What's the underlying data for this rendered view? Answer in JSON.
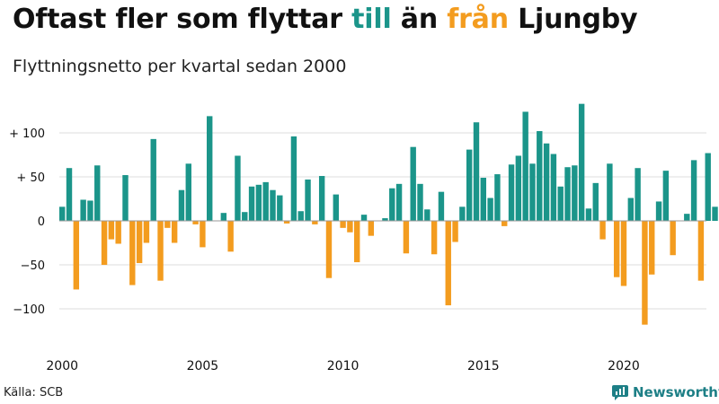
{
  "title": {
    "parts": [
      {
        "text": "Oftast fler som flyttar ",
        "style": "plain"
      },
      {
        "text": "till",
        "style": "positive"
      },
      {
        "text": " än ",
        "style": "plain"
      },
      {
        "text": "från",
        "style": "negative"
      },
      {
        "text": " Ljungby",
        "style": "plain"
      }
    ]
  },
  "subtitle": "Flyttningsnetto per kvartal sedan 2000",
  "source": "Källa: SCB",
  "brand": {
    "name": "Newsworthy",
    "icon": "newsworthy-logo-icon"
  },
  "colors": {
    "positive": "#1b958a",
    "negative": "#f39c1f",
    "grid": "#dddddd",
    "zero": "#9a9a9a",
    "text": "#111111"
  },
  "chart_data": {
    "type": "bar",
    "xlabel": "",
    "ylabel": "",
    "ylim": [
      -135,
      140
    ],
    "grid": true,
    "y_ticks": [
      {
        "value": 100,
        "label": "+ 100"
      },
      {
        "value": 50,
        "label": "+  50"
      },
      {
        "value": 0,
        "label": "0"
      },
      {
        "value": -50,
        "label": "−50"
      },
      {
        "value": -100,
        "label": "−100"
      }
    ],
    "x_ticks": [
      "2000",
      "2005",
      "2010",
      "2015",
      "2020"
    ],
    "quarters": [
      "2000 Q1",
      "2000 Q2",
      "2000 Q3",
      "2000 Q4",
      "2001 Q1",
      "2001 Q2",
      "2001 Q3",
      "2001 Q4",
      "2002 Q1",
      "2002 Q2",
      "2002 Q3",
      "2002 Q4",
      "2003 Q1",
      "2003 Q2",
      "2003 Q3",
      "2003 Q4",
      "2004 Q1",
      "2004 Q2",
      "2004 Q3",
      "2004 Q4",
      "2005 Q1",
      "2005 Q2",
      "2005 Q3",
      "2005 Q4",
      "2006 Q1",
      "2006 Q2",
      "2006 Q3",
      "2006 Q4",
      "2007 Q1",
      "2007 Q2",
      "2007 Q3",
      "2007 Q4",
      "2008 Q1",
      "2008 Q2",
      "2008 Q3",
      "2008 Q4",
      "2009 Q1",
      "2009 Q2",
      "2009 Q3",
      "2009 Q4",
      "2010 Q1",
      "2010 Q2",
      "2010 Q3",
      "2010 Q4",
      "2011 Q1",
      "2011 Q2",
      "2011 Q3",
      "2011 Q4",
      "2012 Q1",
      "2012 Q2",
      "2012 Q3",
      "2012 Q4",
      "2013 Q1",
      "2013 Q2",
      "2013 Q3",
      "2013 Q4",
      "2014 Q1",
      "2014 Q2",
      "2014 Q3",
      "2014 Q4",
      "2015 Q1",
      "2015 Q2",
      "2015 Q3",
      "2015 Q4",
      "2016 Q1",
      "2016 Q2",
      "2016 Q3",
      "2016 Q4",
      "2017 Q1",
      "2017 Q2",
      "2017 Q3",
      "2017 Q4",
      "2018 Q1",
      "2018 Q2",
      "2018 Q3",
      "2018 Q4",
      "2019 Q1",
      "2019 Q2",
      "2019 Q3",
      "2019 Q4",
      "2020 Q1",
      "2020 Q2",
      "2020 Q3",
      "2020 Q4",
      "2021 Q1",
      "2021 Q2",
      "2021 Q3",
      "2021 Q4",
      "2022 Q1",
      "2022 Q2",
      "2022 Q3",
      "2022 Q4",
      "2023 Q1",
      "2023 Q2",
      "2023 Q3",
      "2023 Q4"
    ],
    "values": [
      16,
      60,
      -78,
      24,
      23,
      63,
      -50,
      -21,
      -26,
      52,
      -73,
      -48,
      -25,
      93,
      -68,
      -8,
      -25,
      35,
      65,
      -4,
      -30,
      119,
      0,
      9,
      -35,
      74,
      10,
      39,
      41,
      44,
      35,
      29,
      -3,
      96,
      11,
      47,
      -4,
      51,
      -65,
      30,
      -8,
      -13,
      -47,
      7,
      -17,
      0,
      3,
      37,
      42,
      -37,
      84,
      42,
      13,
      -38,
      33,
      -96,
      -24,
      16,
      81,
      112,
      49,
      26,
      53,
      -6,
      64,
      74,
      124,
      65,
      102,
      88,
      76,
      39,
      61,
      63,
      133,
      14,
      43,
      -21,
      65,
      -64,
      -74,
      26,
      60,
      -118,
      -61,
      22,
      57,
      -39,
      0,
      8,
      69,
      -68,
      77,
      16,
      0,
      0
    ]
  }
}
